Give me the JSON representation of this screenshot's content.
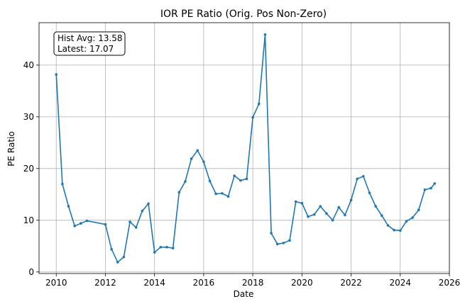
{
  "chart_data": {
    "type": "line",
    "title": "IOR PE Ratio (Orig. Pos Non-Zero)",
    "xlabel": "Date",
    "ylabel": "PE Ratio",
    "xlim": [
      2009.3,
      2026.0
    ],
    "ylim": [
      -0.3,
      48.2
    ],
    "xticks": [
      2010,
      2012,
      2014,
      2016,
      2018,
      2020,
      2022,
      2024,
      2026
    ],
    "yticks": [
      0,
      10,
      20,
      30,
      40
    ],
    "grid": true,
    "color": "#1f77b4",
    "annotation": {
      "line1": "Hist Avg: 13.58",
      "line2": "Latest: 17.07",
      "placement": "top-left"
    },
    "series": [
      {
        "x": [
          2010.0,
          2010.25,
          2010.5,
          2010.75,
          2011.0,
          2011.25,
          2012.0,
          2012.25,
          2012.5,
          2012.75,
          2013.0,
          2013.25,
          2013.5,
          2013.75,
          2014.0,
          2014.25,
          2014.5,
          2014.75,
          2015.0,
          2015.25,
          2015.5,
          2015.75,
          2016.0,
          2016.25,
          2016.5,
          2016.75,
          2017.0,
          2017.25,
          2017.5,
          2017.75,
          2018.0,
          2018.25,
          2018.5,
          2018.75,
          2019.0,
          2019.25,
          2019.5,
          2019.75,
          2020.0,
          2020.25,
          2020.5,
          2020.75,
          2021.0,
          2021.25,
          2021.5,
          2021.75,
          2022.0,
          2022.25,
          2022.5,
          2022.75,
          2023.0,
          2023.25,
          2023.5,
          2023.75,
          2024.0,
          2024.25,
          2024.5,
          2024.75,
          2025.0,
          2025.25,
          2025.4
        ],
        "values": [
          38.2,
          17.0,
          12.7,
          8.9,
          9.4,
          9.9,
          9.2,
          4.4,
          1.9,
          2.9,
          9.7,
          8.6,
          11.8,
          13.2,
          3.8,
          4.8,
          4.8,
          4.6,
          15.4,
          17.5,
          21.9,
          23.5,
          21.3,
          17.6,
          15.1,
          15.2,
          14.6,
          18.6,
          17.7,
          18.0,
          29.9,
          32.5,
          45.9,
          7.5,
          5.4,
          5.6,
          6.1,
          13.6,
          13.3,
          10.7,
          11.1,
          12.7,
          11.3,
          10.0,
          12.5,
          11.0,
          13.9,
          18.0,
          18.5,
          15.3,
          12.7,
          10.9,
          9.0,
          8.1,
          8.0,
          9.8,
          10.5,
          12.0,
          15.9,
          16.2,
          17.1
        ]
      }
    ]
  }
}
